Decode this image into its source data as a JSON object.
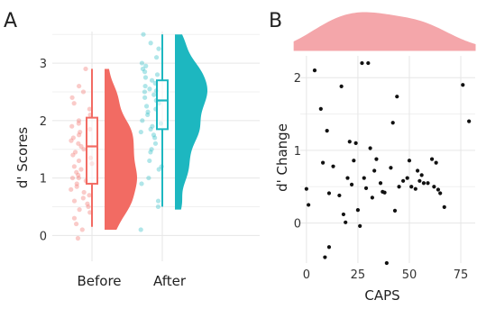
{
  "chart_data": [
    {
      "panel": "A",
      "type": "raincloud",
      "xlabel": "",
      "ylabel": "d' Scores",
      "ylim": [
        -0.45,
        3.55
      ],
      "yticks": [
        0,
        1,
        2,
        3
      ],
      "grid": true,
      "categories": [
        "Before",
        "After"
      ],
      "colors": {
        "Before": "#f26b63",
        "After": "#1db7c0"
      },
      "series": [
        {
          "name": "Before",
          "box": {
            "min": 0.15,
            "q1": 0.9,
            "median": 1.55,
            "q3": 2.05,
            "max": 2.9
          },
          "points": [
            2.2,
            2.1,
            1.9,
            2.0,
            1.85,
            1.7,
            1.6,
            1.55,
            1.5,
            1.45,
            1.4,
            1.35,
            1.3,
            1.2,
            1.15,
            1.1,
            1.0,
            0.95,
            0.9,
            0.85,
            0.8,
            0.7,
            0.6,
            0.5,
            0.45,
            0.3,
            0.1,
            -0.05,
            2.9,
            2.5,
            2.4,
            2.3,
            1.75,
            1.65,
            1.25,
            1.05,
            0.75,
            0.65,
            0.4,
            0.2,
            1.95,
            1.8,
            1.0,
            0.55,
            2.6
          ]
        },
        {
          "name": "After",
          "box": {
            "min": 0.5,
            "q1": 1.85,
            "median": 2.35,
            "q3": 2.7,
            "max": 3.5
          },
          "points": [
            3.5,
            3.25,
            3.1,
            3.0,
            2.95,
            2.9,
            2.8,
            2.75,
            2.7,
            2.65,
            2.6,
            2.55,
            2.5,
            2.45,
            2.4,
            2.35,
            2.3,
            2.25,
            2.2,
            2.1,
            2.0,
            1.9,
            1.85,
            1.8,
            1.7,
            1.6,
            1.5,
            1.45,
            1.3,
            1.2,
            1.0,
            0.9,
            0.6,
            0.5,
            0.1,
            3.35,
            2.85,
            2.52,
            2.15,
            1.95,
            1.75,
            1.15
          ]
        }
      ]
    },
    {
      "panel": "B",
      "type": "scatter",
      "xlabel": "CAPS",
      "ylabel": "d' Change",
      "xlim": [
        -3,
        82
      ],
      "ylim": [
        -0.55,
        2.3
      ],
      "xticks": [
        0,
        25,
        50,
        75
      ],
      "yticks": [
        0,
        1,
        2
      ],
      "grid": true,
      "marginal_density": {
        "type": "area",
        "color": "#f4a6aa",
        "mode_x": 26
      },
      "points": [
        [
          0,
          0.47
        ],
        [
          1,
          0.25
        ],
        [
          4,
          2.1
        ],
        [
          7,
          1.57
        ],
        [
          8,
          0.83
        ],
        [
          9,
          -0.47
        ],
        [
          10,
          1.27
        ],
        [
          11,
          0.41
        ],
        [
          11,
          -0.33
        ],
        [
          13,
          0.78
        ],
        [
          16,
          0.38
        ],
        [
          17,
          1.88
        ],
        [
          18,
          0.12
        ],
        [
          19,
          0.01
        ],
        [
          20,
          0.62
        ],
        [
          21,
          1.12
        ],
        [
          22,
          0.53
        ],
        [
          23,
          0.86
        ],
        [
          24,
          1.1
        ],
        [
          25,
          0.18
        ],
        [
          26,
          -0.04
        ],
        [
          27,
          2.2
        ],
        [
          28,
          0.62
        ],
        [
          29,
          0.48
        ],
        [
          30,
          2.2
        ],
        [
          31,
          1.03
        ],
        [
          32,
          0.35
        ],
        [
          33,
          0.72
        ],
        [
          34,
          0.88
        ],
        [
          36,
          0.55
        ],
        [
          37,
          0.43
        ],
        [
          38,
          0.42
        ],
        [
          39,
          -0.55
        ],
        [
          41,
          0.76
        ],
        [
          42,
          1.38
        ],
        [
          43,
          0.17
        ],
        [
          44,
          1.74
        ],
        [
          45,
          0.5
        ],
        [
          47,
          0.58
        ],
        [
          49,
          0.62
        ],
        [
          50,
          0.86
        ],
        [
          51,
          0.5
        ],
        [
          53,
          0.47
        ],
        [
          54,
          0.72
        ],
        [
          55,
          0.58
        ],
        [
          56,
          0.66
        ],
        [
          57,
          0.55
        ],
        [
          59,
          0.55
        ],
        [
          61,
          0.88
        ],
        [
          62,
          0.5
        ],
        [
          63,
          0.83
        ],
        [
          64,
          0.46
        ],
        [
          65,
          0.41
        ],
        [
          67,
          0.22
        ],
        [
          76,
          1.9
        ],
        [
          79,
          1.4
        ]
      ]
    }
  ],
  "panels": {
    "A": {
      "label": "A"
    },
    "B": {
      "label": "B"
    }
  }
}
